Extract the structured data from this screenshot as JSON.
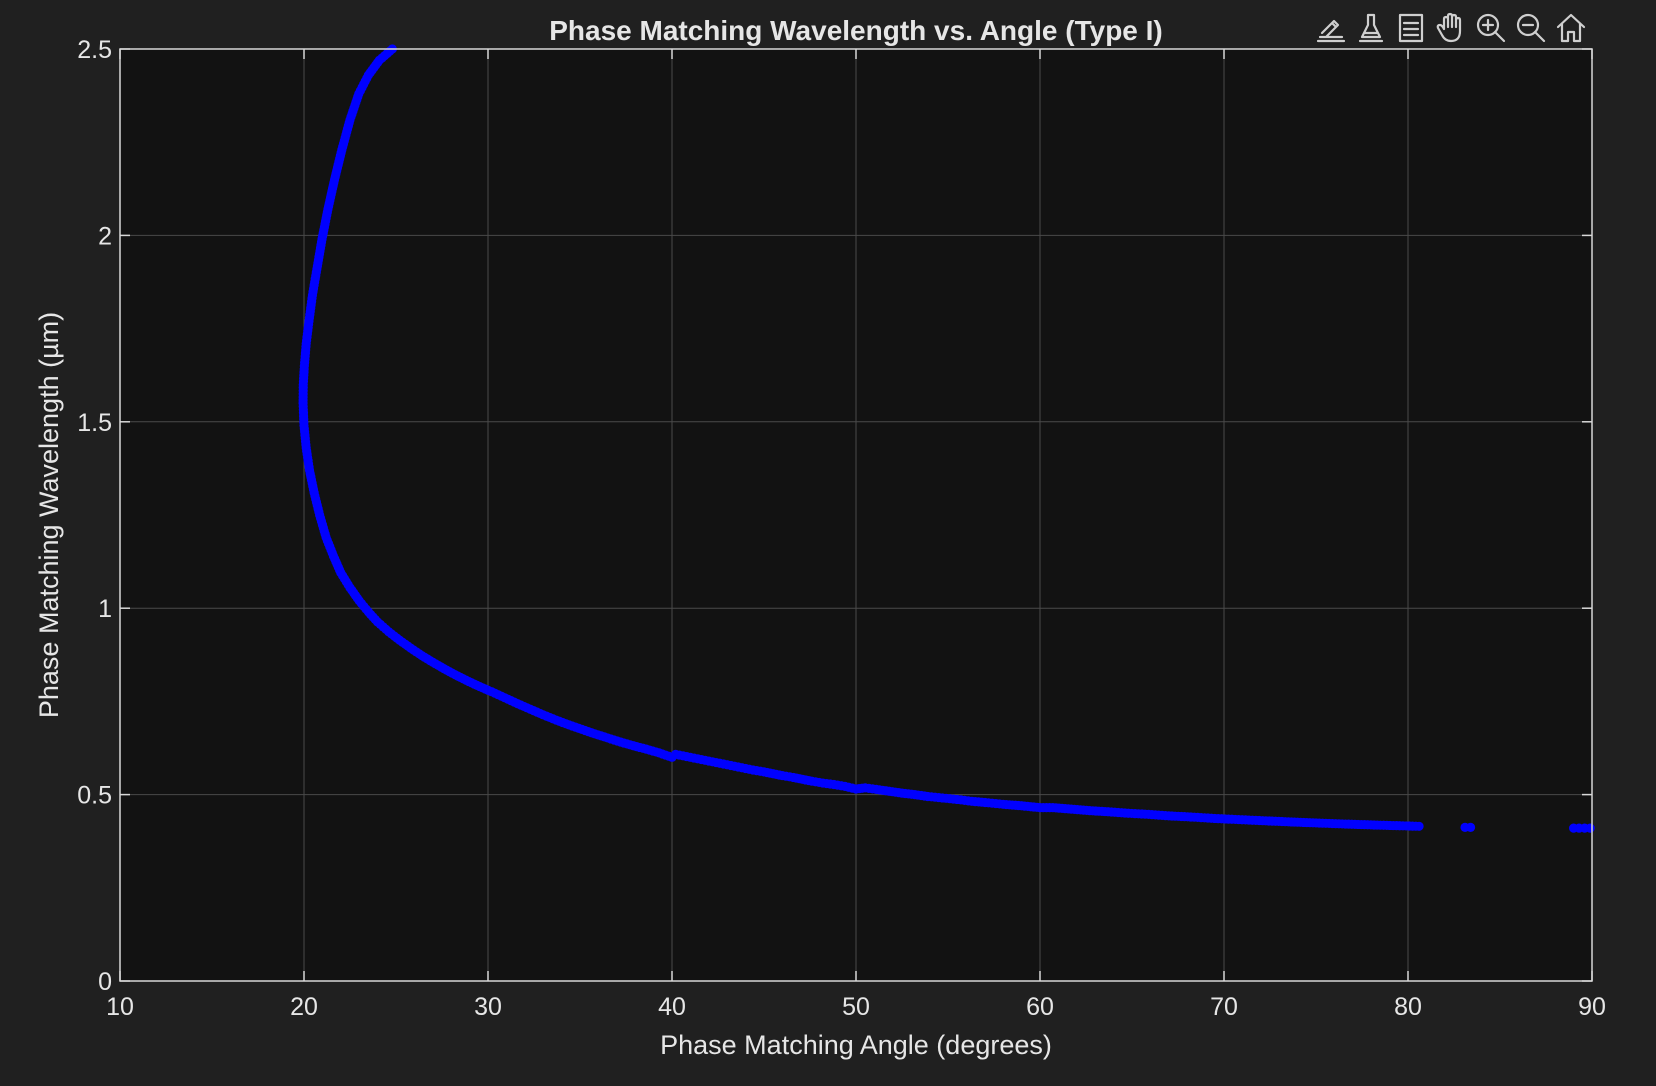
{
  "toolbar": {
    "icons": [
      {
        "name": "edit-plot-icon"
      },
      {
        "name": "brush-data-icon"
      },
      {
        "name": "legend-icon"
      },
      {
        "name": "pan-hand-icon"
      },
      {
        "name": "zoom-in-icon"
      },
      {
        "name": "zoom-out-icon"
      },
      {
        "name": "home-icon"
      }
    ]
  },
  "colors": {
    "figure_bg": "#202020",
    "axes_bg": "#121212",
    "grid": "#4a4a4a",
    "axis_line": "#d8d8d8",
    "text": "#e6e6e6",
    "series": "#0000ff"
  },
  "chart_data": {
    "type": "scatter",
    "title": "Phase Matching Wavelength vs. Angle (Type I)",
    "xlabel": "Phase Matching Angle (degrees)",
    "ylabel": "Phase Matching Wavelength (µm)",
    "xlim": [
      10,
      90
    ],
    "ylim": [
      0,
      2.5
    ],
    "xticks": [
      10,
      20,
      30,
      40,
      50,
      60,
      70,
      80,
      90
    ],
    "xtick_labels": [
      "10",
      "20",
      "30",
      "40",
      "50",
      "60",
      "70",
      "80",
      "90"
    ],
    "yticks": [
      0,
      0.5,
      1,
      1.5,
      2,
      2.5
    ],
    "ytick_labels": [
      "0",
      "0.5",
      "1",
      "1.5",
      "2",
      "2.5"
    ],
    "grid": true,
    "series": [
      {
        "name": "Type I",
        "points": [
          {
            "x": 89.9,
            "y": 0.41
          },
          {
            "x": 89.6,
            "y": 0.41
          },
          {
            "x": 89.3,
            "y": 0.41
          },
          {
            "x": 89.0,
            "y": 0.41
          },
          {
            "x": 83.4,
            "y": 0.412
          },
          {
            "x": 83.1,
            "y": 0.412
          },
          {
            "x": 80.6,
            "y": 0.415
          },
          {
            "x": 78.5,
            "y": 0.418
          },
          {
            "x": 76.6,
            "y": 0.421
          },
          {
            "x": 75.0,
            "y": 0.424
          },
          {
            "x": 73.5,
            "y": 0.427
          },
          {
            "x": 72.1,
            "y": 0.43
          },
          {
            "x": 70.8,
            "y": 0.433
          },
          {
            "x": 69.5,
            "y": 0.436
          },
          {
            "x": 68.2,
            "y": 0.44
          },
          {
            "x": 67.0,
            "y": 0.443
          },
          {
            "x": 65.9,
            "y": 0.447
          },
          {
            "x": 64.8,
            "y": 0.45
          },
          {
            "x": 63.7,
            "y": 0.454
          },
          {
            "x": 62.7,
            "y": 0.457
          },
          {
            "x": 61.7,
            "y": 0.461
          },
          {
            "x": 60.7,
            "y": 0.465
          },
          {
            "x": 60.0,
            "y": 0.465
          },
          {
            "x": 59.0,
            "y": 0.47
          },
          {
            "x": 58.0,
            "y": 0.474
          },
          {
            "x": 57.2,
            "y": 0.478
          },
          {
            "x": 56.3,
            "y": 0.482
          },
          {
            "x": 55.5,
            "y": 0.487
          },
          {
            "x": 54.7,
            "y": 0.491
          },
          {
            "x": 53.9,
            "y": 0.495
          },
          {
            "x": 53.2,
            "y": 0.5
          },
          {
            "x": 52.5,
            "y": 0.504
          },
          {
            "x": 51.8,
            "y": 0.509
          },
          {
            "x": 51.1,
            "y": 0.514
          },
          {
            "x": 50.5,
            "y": 0.518
          },
          {
            "x": 50.0,
            "y": 0.515
          },
          {
            "x": 49.4,
            "y": 0.522
          },
          {
            "x": 48.8,
            "y": 0.527
          },
          {
            "x": 48.2,
            "y": 0.531
          },
          {
            "x": 47.6,
            "y": 0.536
          },
          {
            "x": 47.1,
            "y": 0.541
          },
          {
            "x": 46.6,
            "y": 0.546
          },
          {
            "x": 46.0,
            "y": 0.551
          },
          {
            "x": 45.5,
            "y": 0.556
          },
          {
            "x": 45.0,
            "y": 0.561
          },
          {
            "x": 44.4,
            "y": 0.566
          },
          {
            "x": 43.8,
            "y": 0.572
          },
          {
            "x": 43.2,
            "y": 0.578
          },
          {
            "x": 42.6,
            "y": 0.584
          },
          {
            "x": 42.0,
            "y": 0.59
          },
          {
            "x": 41.4,
            "y": 0.596
          },
          {
            "x": 40.8,
            "y": 0.602
          },
          {
            "x": 40.2,
            "y": 0.608
          },
          {
            "x": 40.0,
            "y": 0.6
          },
          {
            "x": 39.3,
            "y": 0.612
          },
          {
            "x": 38.6,
            "y": 0.622
          },
          {
            "x": 37.9,
            "y": 0.631
          },
          {
            "x": 37.2,
            "y": 0.641
          },
          {
            "x": 36.5,
            "y": 0.652
          },
          {
            "x": 35.8,
            "y": 0.663
          },
          {
            "x": 35.1,
            "y": 0.675
          },
          {
            "x": 34.4,
            "y": 0.687
          },
          {
            "x": 33.7,
            "y": 0.7
          },
          {
            "x": 33.0,
            "y": 0.714
          },
          {
            "x": 32.3,
            "y": 0.729
          },
          {
            "x": 31.6,
            "y": 0.744
          },
          {
            "x": 30.9,
            "y": 0.76
          },
          {
            "x": 30.2,
            "y": 0.776
          },
          {
            "x": 30.0,
            "y": 0.78
          },
          {
            "x": 29.4,
            "y": 0.793
          },
          {
            "x": 28.8,
            "y": 0.807
          },
          {
            "x": 28.2,
            "y": 0.822
          },
          {
            "x": 27.6,
            "y": 0.838
          },
          {
            "x": 27.0,
            "y": 0.855
          },
          {
            "x": 26.4,
            "y": 0.873
          },
          {
            "x": 25.8,
            "y": 0.893
          },
          {
            "x": 25.2,
            "y": 0.914
          },
          {
            "x": 24.6,
            "y": 0.937
          },
          {
            "x": 24.0,
            "y": 0.963
          },
          {
            "x": 23.5,
            "y": 0.99
          },
          {
            "x": 23.0,
            "y": 1.02
          },
          {
            "x": 22.5,
            "y": 1.055
          },
          {
            "x": 22.0,
            "y": 1.095
          },
          {
            "x": 21.6,
            "y": 1.14
          },
          {
            "x": 21.2,
            "y": 1.19
          },
          {
            "x": 20.85,
            "y": 1.25
          },
          {
            "x": 20.55,
            "y": 1.31
          },
          {
            "x": 20.3,
            "y": 1.37
          },
          {
            "x": 20.12,
            "y": 1.43
          },
          {
            "x": 20.0,
            "y": 1.49
          },
          {
            "x": 19.95,
            "y": 1.55
          },
          {
            "x": 19.96,
            "y": 1.6
          },
          {
            "x": 20.02,
            "y": 1.65
          },
          {
            "x": 20.12,
            "y": 1.71
          },
          {
            "x": 20.27,
            "y": 1.77
          },
          {
            "x": 20.46,
            "y": 1.84
          },
          {
            "x": 20.7,
            "y": 1.91
          },
          {
            "x": 20.98,
            "y": 1.99
          },
          {
            "x": 21.3,
            "y": 2.07
          },
          {
            "x": 21.66,
            "y": 2.15
          },
          {
            "x": 22.06,
            "y": 2.23
          },
          {
            "x": 22.5,
            "y": 2.31
          },
          {
            "x": 22.98,
            "y": 2.38
          },
          {
            "x": 23.5,
            "y": 2.43
          },
          {
            "x": 24.1,
            "y": 2.47
          },
          {
            "x": 24.8,
            "y": 2.5
          }
        ]
      }
    ]
  }
}
